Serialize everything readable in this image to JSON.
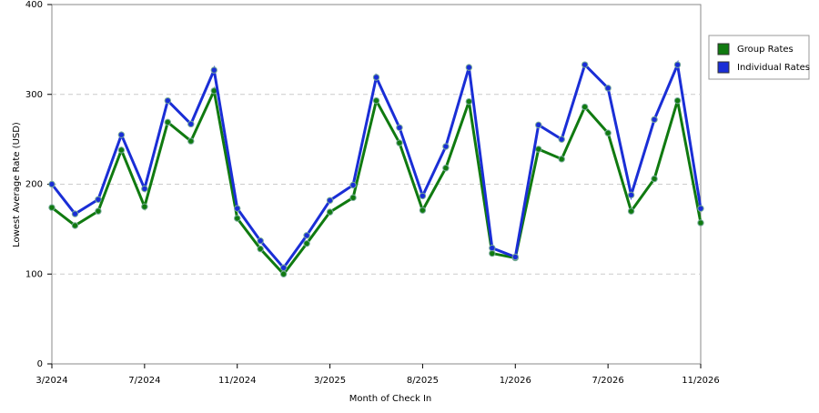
{
  "chart_data": {
    "type": "line",
    "x_label": "Month of Check In",
    "y_label": "Lowest Average Rate (USD)",
    "categories": [
      "3/2024",
      null,
      null,
      null,
      "7/2024",
      null,
      null,
      null,
      "11/2024",
      null,
      null,
      null,
      "3/2025",
      null,
      null,
      null,
      "8/2025",
      null,
      null,
      null,
      "1/2026",
      null,
      null,
      null,
      "7/2026",
      null,
      null,
      null,
      "11/2026"
    ],
    "series": [
      {
        "name": "Group Rates",
        "color": "#107a10",
        "values": [
          174,
          154,
          170,
          238,
          175,
          269,
          248,
          304,
          162,
          128,
          100,
          134,
          169,
          185,
          293,
          246,
          171,
          218,
          292,
          123,
          118,
          239,
          228,
          286,
          257,
          170,
          206,
          293,
          157
        ]
      },
      {
        "name": "Individual Rates",
        "color": "#1a2ed6",
        "values": [
          200,
          167,
          183,
          255,
          195,
          293,
          267,
          327,
          173,
          137,
          107,
          143,
          182,
          199,
          319,
          263,
          187,
          242,
          330,
          129,
          119,
          266,
          250,
          333,
          307,
          188,
          272,
          333,
          173
        ]
      }
    ],
    "ylim": [
      0,
      400
    ],
    "yticks": [
      0,
      100,
      200,
      300,
      400
    ],
    "grid": true,
    "legend": "right"
  }
}
